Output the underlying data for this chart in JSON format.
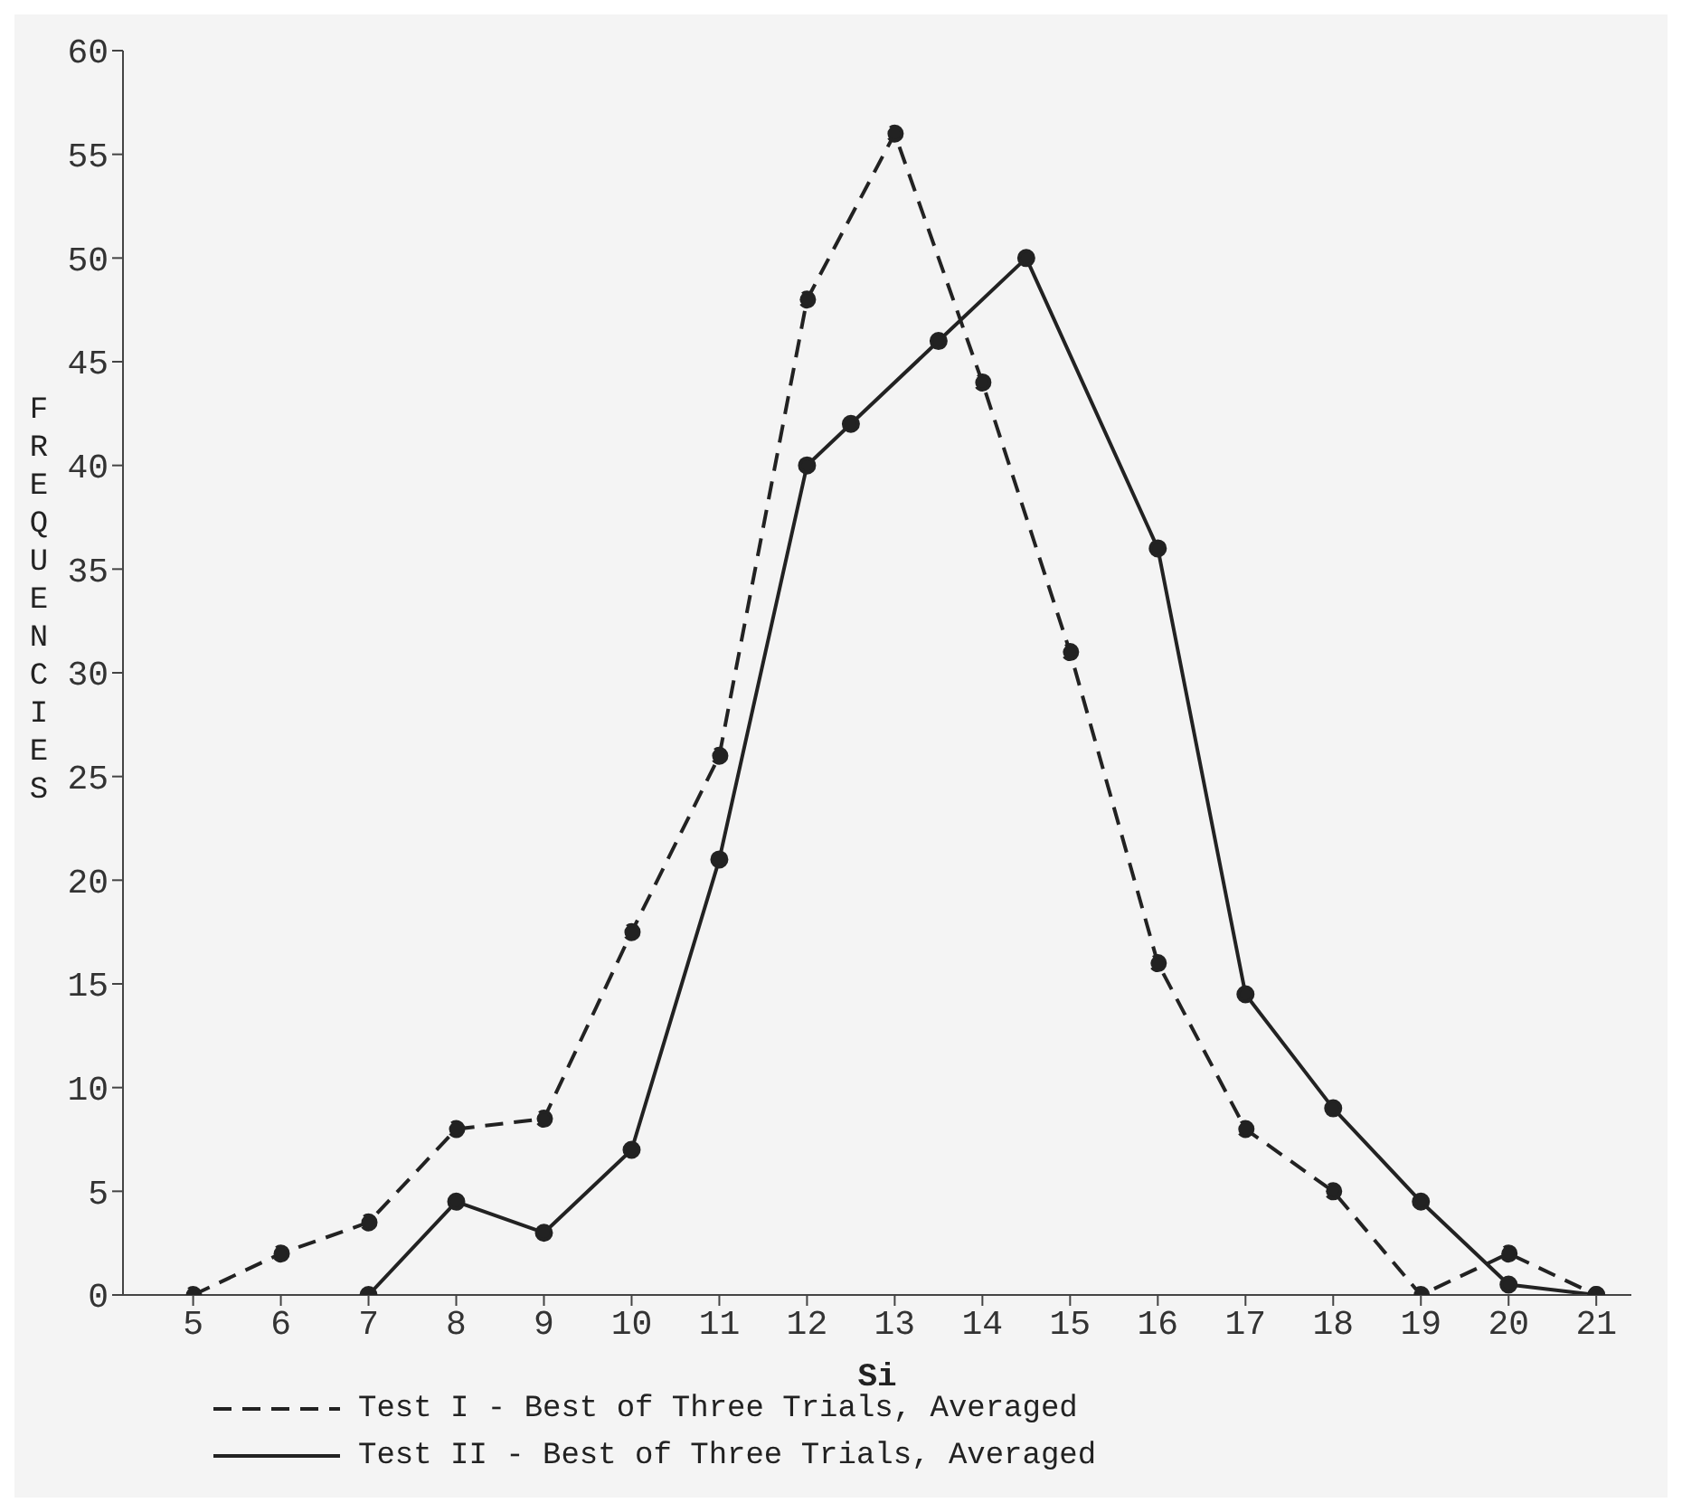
{
  "chart_data": {
    "type": "line",
    "xlabel": "Si",
    "ylabel": "FREQUENCIES",
    "xlim": [
      4.2,
      21.4
    ],
    "xticks": [
      5,
      6,
      7,
      8,
      9,
      10,
      11,
      12,
      13,
      14,
      15,
      16,
      17,
      18,
      19,
      20,
      21
    ],
    "ylim": [
      0,
      60
    ],
    "yticks": [
      0,
      5,
      10,
      15,
      20,
      25,
      30,
      35,
      40,
      45,
      50,
      55,
      60
    ],
    "grid": false,
    "legend": "bottom",
    "marker": "circle",
    "series": [
      {
        "name": "Test I - Best of Three Trials, Averaged",
        "color": "#222222",
        "line_style": "dashed",
        "x": [
          5,
          6,
          7,
          8,
          9,
          10,
          11,
          12,
          13,
          14,
          15,
          16,
          17,
          18,
          19,
          20,
          21
        ],
        "values": [
          0,
          2,
          3.5,
          8,
          8.5,
          17.5,
          26,
          48,
          56,
          44,
          31,
          16,
          8,
          5,
          0,
          2,
          0
        ]
      },
      {
        "name": "Test II - Best of Three Trials, Averaged",
        "color": "#222222",
        "line_style": "solid",
        "x": [
          7,
          8,
          9,
          10,
          11,
          12,
          12.5,
          13.5,
          14.5,
          16,
          17,
          18,
          19,
          20,
          21
        ],
        "values": [
          0,
          4.5,
          3,
          7,
          21,
          40,
          42,
          46,
          50,
          36,
          14.5,
          9,
          4.5,
          0.5,
          0
        ]
      }
    ]
  }
}
